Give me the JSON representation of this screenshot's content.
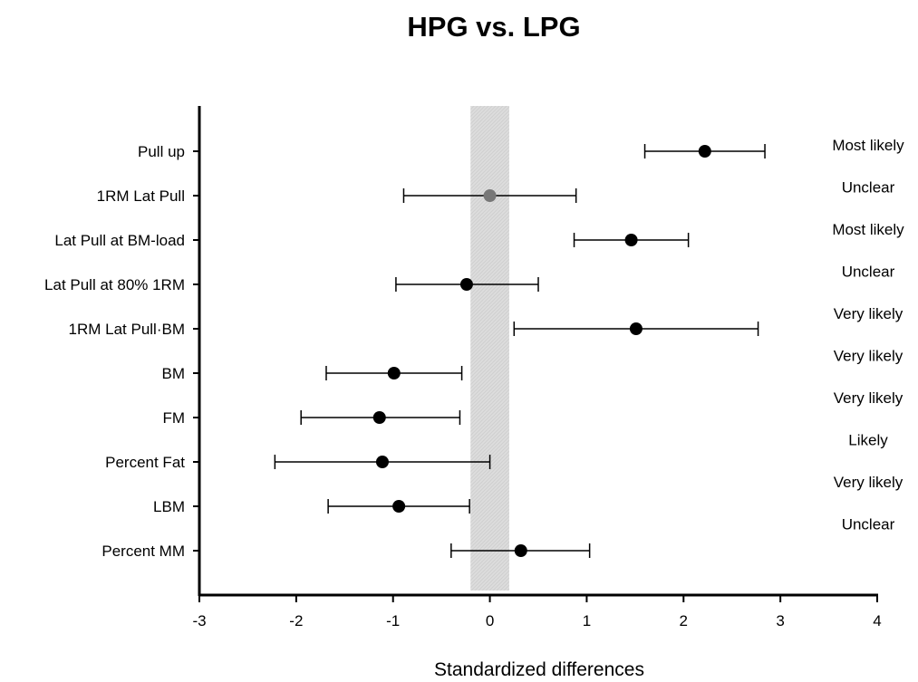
{
  "chart_data": {
    "type": "scatter",
    "subtype": "forest-plot",
    "title": "HPG vs. LPG",
    "xlabel": "Standardized differences",
    "ylabel": "",
    "xlim": [
      -3,
      4
    ],
    "xticks": [
      "-3",
      "-2",
      "-1",
      "0",
      "1",
      "2",
      "3",
      "4"
    ],
    "trivial_zone": [
      -0.2,
      0.2
    ],
    "trivial_zone_color": "#dddddd",
    "grid": false,
    "legend": "none",
    "marker_color": "#000000",
    "unclear_marker_color": "#777777",
    "rows": [
      {
        "label": "Pull up",
        "value": 2.22,
        "ci_low": 1.6,
        "ci_high": 2.84,
        "annotation": "Most likely"
      },
      {
        "label": "1RM Lat Pull",
        "value": 0.0,
        "ci_low": -0.89,
        "ci_high": 0.89,
        "annotation": "Unclear"
      },
      {
        "label": "Lat Pull at BM-load",
        "value": 1.46,
        "ci_low": 0.87,
        "ci_high": 2.05,
        "annotation": "Most likely"
      },
      {
        "label": "Lat Pull at 80% 1RM",
        "value": -0.24,
        "ci_low": -0.97,
        "ci_high": 0.5,
        "annotation": "Unclear"
      },
      {
        "label": "1RM Lat Pull·BM",
        "value": 1.51,
        "ci_low": 0.25,
        "ci_high": 2.77,
        "annotation": "Very likely"
      },
      {
        "label": "BM",
        "value": -0.99,
        "ci_low": -1.69,
        "ci_high": -0.29,
        "annotation": "Very likely"
      },
      {
        "label": "FM",
        "value": -1.14,
        "ci_low": -1.95,
        "ci_high": -0.31,
        "annotation": "Very likely"
      },
      {
        "label": "Percent Fat",
        "value": -1.11,
        "ci_low": -2.22,
        "ci_high": 0.0,
        "annotation": "Likely"
      },
      {
        "label": "LBM",
        "value": -0.94,
        "ci_low": -1.67,
        "ci_high": -0.21,
        "annotation": "Very likely"
      },
      {
        "label": "Percent MM",
        "value": 0.32,
        "ci_low": -0.4,
        "ci_high": 1.03,
        "annotation": "Unclear"
      }
    ]
  }
}
